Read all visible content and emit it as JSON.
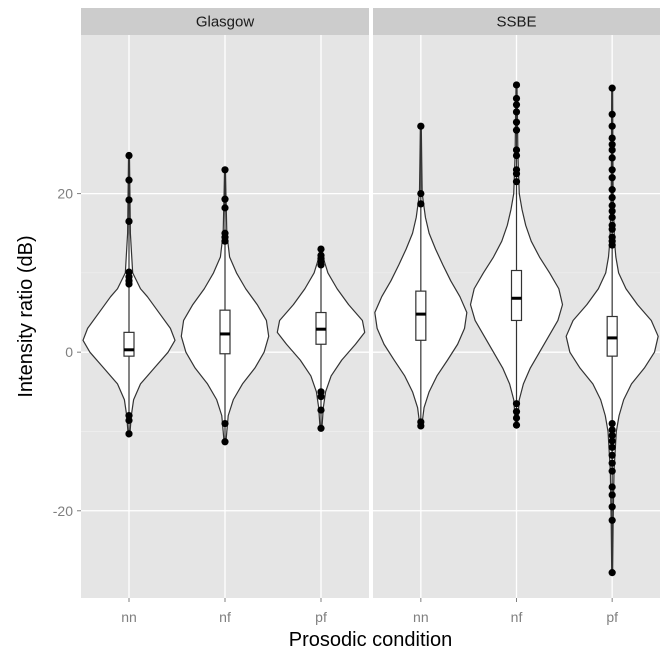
{
  "chart_data": {
    "type": "violin",
    "xlabel": "Prosodic condition",
    "ylabel": "Intensity ratio (dB)",
    "ylim": [
      -31,
      40
    ],
    "y_ticks": [
      -20,
      0,
      20
    ],
    "categories": [
      "nn",
      "nf",
      "pf"
    ],
    "grid": true,
    "legend": "none",
    "colors": {
      "panel": "#e5e5e5",
      "strip": "#cccccc",
      "grid": "#ffffff",
      "violin_fill": "#ffffff",
      "outline": "#333333",
      "points": "#000000"
    },
    "panels": [
      {
        "name": "Glasgow",
        "groups": [
          {
            "category": "nn",
            "ymin": -10.3,
            "ymax": 24.8,
            "q1": -0.5,
            "median": 0.3,
            "q3": 2.5,
            "whisker_low": -7.6,
            "whisker_high": 8.2,
            "outliers": [
              24.8,
              21.7,
              19.2,
              16.5,
              10.1,
              9.5,
              9.0,
              8.6,
              -8.0,
              -8.6,
              -10.3
            ],
            "density": [
              [
                -10.3,
                0.02
              ],
              [
                -8,
                0.05
              ],
              [
                -6,
                0.1
              ],
              [
                -4,
                0.25
              ],
              [
                -2,
                0.55
              ],
              [
                0,
                0.85
              ],
              [
                1.5,
                1.0
              ],
              [
                3,
                0.9
              ],
              [
                5,
                0.65
              ],
              [
                7,
                0.4
              ],
              [
                8,
                0.25
              ],
              [
                10,
                0.08
              ],
              [
                15,
                0.03
              ],
              [
                20,
                0.02
              ],
              [
                24.8,
                0.01
              ]
            ]
          },
          {
            "category": "nf",
            "ymin": -11.3,
            "ymax": 23.0,
            "q1": -0.2,
            "median": 2.3,
            "q3": 5.3,
            "whisker_low": -8.5,
            "whisker_high": 13.0,
            "outliers": [
              23.0,
              19.3,
              18.2,
              15.0,
              14.5,
              14.0,
              -9.0,
              -11.3
            ],
            "density": [
              [
                -11.3,
                0.02
              ],
              [
                -8,
                0.07
              ],
              [
                -6,
                0.18
              ],
              [
                -4,
                0.38
              ],
              [
                -2,
                0.65
              ],
              [
                0,
                0.85
              ],
              [
                2,
                0.95
              ],
              [
                4,
                0.9
              ],
              [
                6,
                0.7
              ],
              [
                8,
                0.45
              ],
              [
                10,
                0.25
              ],
              [
                12,
                0.1
              ],
              [
                15,
                0.04
              ],
              [
                20,
                0.02
              ],
              [
                23,
                0.01
              ]
            ]
          },
          {
            "category": "pf",
            "ymin": -9.6,
            "ymax": 13.0,
            "q1": 1.0,
            "median": 2.9,
            "q3": 5.0,
            "whisker_low": -4.5,
            "whisker_high": 11.0,
            "outliers": [
              13.0,
              12.2,
              11.8,
              11.5,
              11.0,
              -5.0,
              -5.6,
              -7.3,
              -9.6
            ],
            "density": [
              [
                -9.6,
                0.02
              ],
              [
                -7,
                0.05
              ],
              [
                -5,
                0.1
              ],
              [
                -3,
                0.22
              ],
              [
                -1,
                0.45
              ],
              [
                1,
                0.75
              ],
              [
                2.5,
                0.95
              ],
              [
                4,
                0.9
              ],
              [
                6,
                0.6
              ],
              [
                8,
                0.35
              ],
              [
                10,
                0.15
              ],
              [
                11.5,
                0.07
              ],
              [
                13,
                0.02
              ]
            ]
          }
        ]
      },
      {
        "name": "SSBE",
        "groups": [
          {
            "category": "nn",
            "ymin": -9.3,
            "ymax": 28.5,
            "q1": 1.5,
            "median": 4.8,
            "q3": 7.7,
            "whisker_low": -8.5,
            "whisker_high": 17.5,
            "outliers": [
              28.5,
              20.0,
              18.7,
              -8.8,
              -9.3
            ],
            "density": [
              [
                -9.3,
                0.02
              ],
              [
                -7,
                0.07
              ],
              [
                -5,
                0.18
              ],
              [
                -3,
                0.35
              ],
              [
                -1,
                0.58
              ],
              [
                1,
                0.8
              ],
              [
                3,
                0.95
              ],
              [
                5,
                1.0
              ],
              [
                7,
                0.85
              ],
              [
                9,
                0.65
              ],
              [
                11,
                0.48
              ],
              [
                13,
                0.32
              ],
              [
                15,
                0.18
              ],
              [
                17,
                0.1
              ],
              [
                20,
                0.03
              ],
              [
                24,
                0.02
              ],
              [
                28.5,
                0.01
              ]
            ]
          },
          {
            "category": "nf",
            "ymin": -9.2,
            "ymax": 33.7,
            "q1": 4.0,
            "median": 6.8,
            "q3": 10.3,
            "whisker_low": -6.0,
            "whisker_high": 20.0,
            "outliers": [
              33.7,
              32.0,
              31.2,
              30.3,
              29.0,
              28.0,
              25.5,
              24.8,
              23.0,
              22.5,
              21.5,
              -6.5,
              -7.5,
              -8.3,
              -9.2
            ],
            "density": [
              [
                -9.2,
                0.02
              ],
              [
                -6,
                0.06
              ],
              [
                -4,
                0.15
              ],
              [
                -2,
                0.3
              ],
              [
                0,
                0.5
              ],
              [
                2,
                0.7
              ],
              [
                4,
                0.9
              ],
              [
                6,
                1.0
              ],
              [
                8,
                0.92
              ],
              [
                10,
                0.72
              ],
              [
                12,
                0.5
              ],
              [
                14,
                0.32
              ],
              [
                16,
                0.2
              ],
              [
                18,
                0.12
              ],
              [
                20,
                0.06
              ],
              [
                25,
                0.03
              ],
              [
                30,
                0.02
              ],
              [
                33.7,
                0.01
              ]
            ]
          },
          {
            "category": "pf",
            "ymin": -27.8,
            "ymax": 33.3,
            "q1": -0.5,
            "median": 1.8,
            "q3": 4.5,
            "whisker_low": -8.5,
            "whisker_high": 12.5,
            "outliers": [
              33.3,
              30.0,
              28.5,
              27.0,
              26.2,
              25.5,
              24.5,
              23.0,
              22.0,
              20.5,
              19.5,
              18.5,
              17.8,
              17.0,
              16.0,
              15.5,
              14.5,
              14.0,
              13.5,
              -9.0,
              -9.8,
              -10.5,
              -11.2,
              -12.0,
              -13.0,
              -14.0,
              -15.0,
              -17.0,
              -18.0,
              -19.5,
              -21.2,
              -27.8
            ],
            "density": [
              [
                -27.8,
                0.01
              ],
              [
                -22,
                0.02
              ],
              [
                -15,
                0.04
              ],
              [
                -10,
                0.09
              ],
              [
                -8,
                0.15
              ],
              [
                -6,
                0.25
              ],
              [
                -4,
                0.42
              ],
              [
                -2,
                0.7
              ],
              [
                0,
                0.92
              ],
              [
                2,
                1.0
              ],
              [
                4,
                0.85
              ],
              [
                6,
                0.55
              ],
              [
                8,
                0.3
              ],
              [
                10,
                0.14
              ],
              [
                12,
                0.08
              ],
              [
                14,
                0.05
              ],
              [
                20,
                0.02
              ],
              [
                26,
                0.015
              ],
              [
                33.3,
                0.01
              ]
            ]
          }
        ]
      }
    ]
  }
}
